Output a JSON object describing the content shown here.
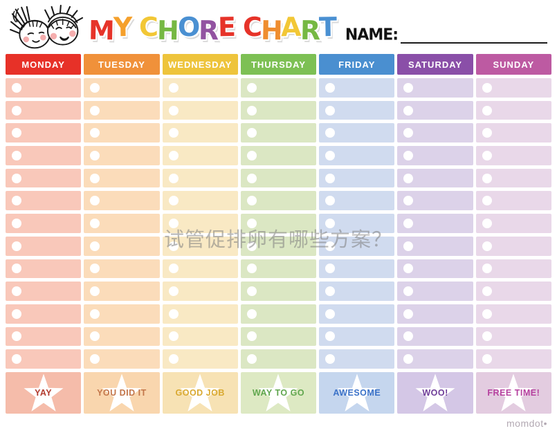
{
  "header": {
    "kids_icon": "two-kids-faces-doodle",
    "title_text": "MY CHORE CHART",
    "title_letters": [
      {
        "ch": "M",
        "color": "#e63329"
      },
      {
        "ch": "Y",
        "color": "#f5a02c"
      },
      {
        "ch": " "
      },
      {
        "ch": "C",
        "color": "#f2c736"
      },
      {
        "ch": "H",
        "color": "#76b843"
      },
      {
        "ch": "O",
        "color": "#4a90d2"
      },
      {
        "ch": "R",
        "color": "#9253a1"
      },
      {
        "ch": "E",
        "color": "#e63329"
      },
      {
        "ch": " "
      },
      {
        "ch": "C",
        "color": "#e63329"
      },
      {
        "ch": "H",
        "color": "#ef8d2f"
      },
      {
        "ch": "A",
        "color": "#f2c736"
      },
      {
        "ch": "R",
        "color": "#76b843"
      },
      {
        "ch": "T",
        "color": "#4a90d2"
      }
    ],
    "name_label": "NAME:",
    "name_value": ""
  },
  "chart": {
    "rows_per_column": 13,
    "star_color": "#ffffff",
    "days": [
      {
        "label": "MONDAY",
        "header_color": "#e73128",
        "cell_color": "#f9c8ba",
        "footer_color": "#f5bcaa",
        "phrase": "YAY",
        "phrase_color": "#b23b2e"
      },
      {
        "label": "TUESDAY",
        "header_color": "#f0913a",
        "cell_color": "#fbdcba",
        "footer_color": "#f9d6ae",
        "phrase": "YOU DID IT",
        "phrase_color": "#c3764a"
      },
      {
        "label": "WEDNESDAY",
        "header_color": "#eec43c",
        "cell_color": "#f9e9c4",
        "footer_color": "#f7e2b4",
        "phrase": "GOOD JOB",
        "phrase_color": "#d9a930"
      },
      {
        "label": "THURSDAY",
        "header_color": "#7dc054",
        "cell_color": "#dbe7c3",
        "footer_color": "#dde9c3",
        "phrase": "WAY TO GO",
        "phrase_color": "#61a74f"
      },
      {
        "label": "FRIDAY",
        "header_color": "#4a8fd0",
        "cell_color": "#d0dbef",
        "footer_color": "#c5d6ee",
        "phrase": "AWESOME",
        "phrase_color": "#3b72c8"
      },
      {
        "label": "SATURDAY",
        "header_color": "#8a4fa8",
        "cell_color": "#dcd2e9",
        "footer_color": "#d4c7e6",
        "phrase": "WOO!",
        "phrase_color": "#6f3e99"
      },
      {
        "label": "SUNDAY",
        "header_color": "#bd5aa2",
        "cell_color": "#e9d8e9",
        "footer_color": "#e3cce0",
        "phrase": "FREE TIME!",
        "phrase_color": "#b6419f"
      }
    ]
  },
  "watermark": {
    "text": "试管促排卵有哪些方案？"
  },
  "footer_brand": "momdot•"
}
